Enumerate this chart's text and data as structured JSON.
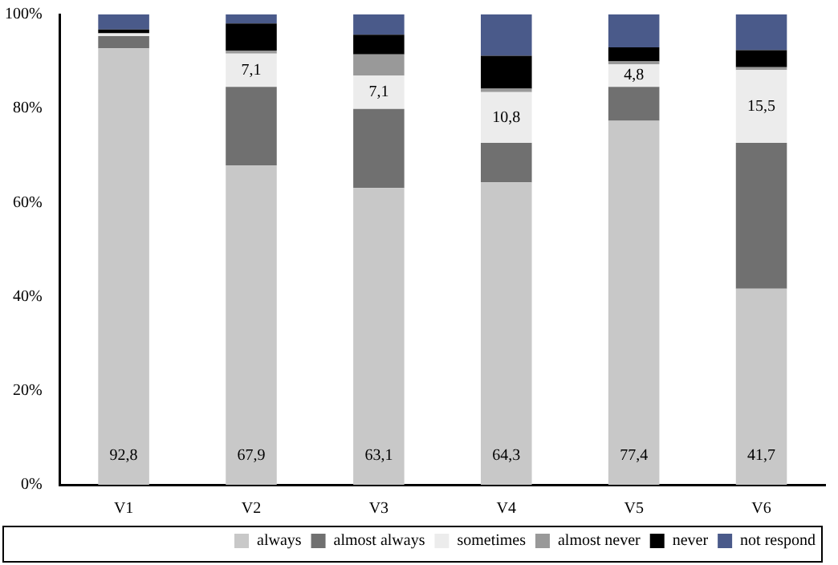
{
  "chart_data": {
    "type": "bar",
    "stacked": true,
    "categories": [
      "V1",
      "V2",
      "V3",
      "V4",
      "V5",
      "V6"
    ],
    "ylim": [
      0,
      100
    ],
    "yticks": [
      {
        "value": 0,
        "label": "0%"
      },
      {
        "value": 20,
        "label": "20%"
      },
      {
        "value": 40,
        "label": "40%"
      },
      {
        "value": 60,
        "label": "60%"
      },
      {
        "value": 80,
        "label": "80%"
      },
      {
        "value": 100,
        "label": "100%"
      }
    ],
    "grid": false,
    "legend": "bottom",
    "series": [
      {
        "name": "always",
        "color": "#c8c8c8",
        "values": [
          92.8,
          67.9,
          63.1,
          64.3,
          77.4,
          41.7
        ],
        "value_labels": [
          "92,8",
          "67,9",
          "63,1",
          "64,3",
          "77,4",
          "41,7"
        ]
      },
      {
        "name": "almost always",
        "color": "#707070",
        "values": [
          2.6,
          16.7,
          16.8,
          8.4,
          7.2,
          31.0
        ]
      },
      {
        "name": "sometimes",
        "color": "#ececec",
        "values": [
          0.6,
          7.1,
          7.1,
          10.8,
          4.8,
          15.5
        ],
        "value_labels": [
          null,
          "7,1",
          "7,1",
          "10,8",
          "4,8",
          "15,5"
        ]
      },
      {
        "name": "almost never",
        "color": "#999999",
        "values": [
          0,
          0.6,
          4.5,
          0.7,
          0.6,
          0.6
        ]
      },
      {
        "name": "never",
        "color": "#000000",
        "values": [
          0.8,
          5.8,
          4.2,
          7.0,
          3.0,
          3.6
        ]
      },
      {
        "name": "not respond",
        "color": "#4a5a8a",
        "values": [
          3.2,
          1.9,
          4.3,
          8.8,
          7.0,
          7.6
        ]
      }
    ]
  }
}
